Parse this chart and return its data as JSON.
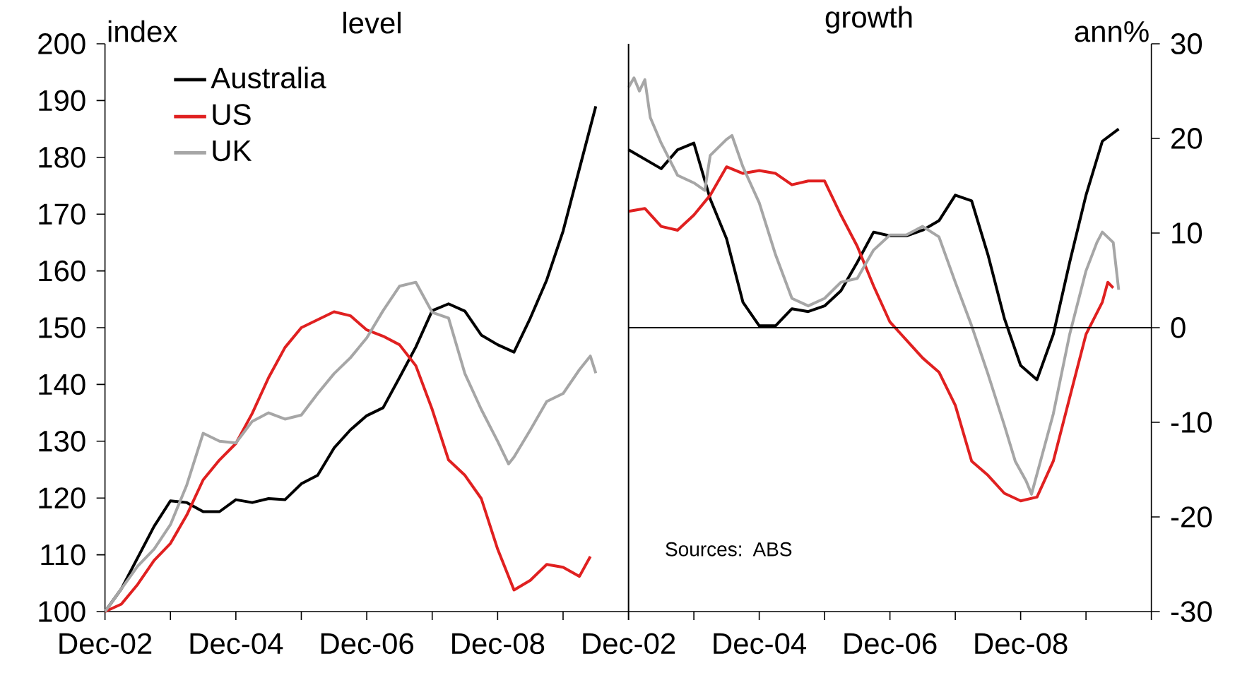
{
  "chart_data": [
    {
      "type": "line",
      "title": "level",
      "ylabel": "index",
      "ylim": [
        100,
        200
      ],
      "yticks": [
        100,
        110,
        120,
        130,
        140,
        150,
        160,
        170,
        180,
        190,
        200
      ],
      "xlim": [
        "2002-12",
        "2010-12"
      ],
      "xticks": [
        {
          "value": "2002-12",
          "label": "Dec-02"
        },
        {
          "value": "2003-12",
          "label": null
        },
        {
          "value": "2004-12",
          "label": "Dec-04"
        },
        {
          "value": "2005-12",
          "label": null
        },
        {
          "value": "2006-12",
          "label": "Dec-06"
        },
        {
          "value": "2007-12",
          "label": null
        },
        {
          "value": "2008-12",
          "label": "Dec-08"
        },
        {
          "value": "2009-12",
          "label": null
        },
        {
          "value": "2010-12",
          "label": null
        }
      ],
      "legend": "top left",
      "grid": false,
      "series": [
        {
          "name": "Australia",
          "color": "#000000",
          "x": [
            "2002-12",
            "2003-03",
            "2003-06",
            "2003-09",
            "2003-12",
            "2004-03",
            "2004-06",
            "2004-09",
            "2004-12",
            "2005-03",
            "2005-06",
            "2005-09",
            "2005-12",
            "2006-03",
            "2006-06",
            "2006-09",
            "2006-12",
            "2007-03",
            "2007-06",
            "2007-09",
            "2007-12",
            "2008-03",
            "2008-06",
            "2008-09",
            "2008-12",
            "2009-03",
            "2009-06",
            "2009-09",
            "2009-12",
            "2010-03",
            "2010-06"
          ],
          "values": [
            100,
            104,
            109.5,
            115,
            119.5,
            119.2,
            117.6,
            117.6,
            119.7,
            119.2,
            119.9,
            119.7,
            122.5,
            124,
            128.8,
            132,
            134.5,
            135.9,
            141.2,
            146.6,
            153,
            154.2,
            152.9,
            148.7,
            147,
            145.7,
            151.7,
            158.4,
            167,
            178,
            189
          ]
        },
        {
          "name": "US",
          "color": "#e02020",
          "x": [
            "2002-12",
            "2003-03",
            "2003-06",
            "2003-09",
            "2003-12",
            "2004-03",
            "2004-06",
            "2004-09",
            "2004-12",
            "2005-03",
            "2005-06",
            "2005-09",
            "2005-12",
            "2006-03",
            "2006-06",
            "2006-09",
            "2006-12",
            "2007-03",
            "2007-06",
            "2007-09",
            "2007-12",
            "2008-03",
            "2008-06",
            "2008-09",
            "2008-12",
            "2009-03",
            "2009-06",
            "2009-09",
            "2009-12",
            "2010-03",
            "2010-05"
          ],
          "values": [
            100,
            101.3,
            104.8,
            109,
            112,
            117,
            123.2,
            126.7,
            129.6,
            134.9,
            141.2,
            146.5,
            150,
            151.4,
            152.8,
            152.1,
            149.6,
            148.5,
            147,
            143.3,
            135.6,
            126.7,
            124,
            119.9,
            111,
            103.8,
            105.5,
            108.3,
            107.8,
            106.2,
            109.7
          ]
        },
        {
          "name": "UK",
          "color": "#a6a6a6",
          "x": [
            "2002-12",
            "2003-03",
            "2003-06",
            "2003-09",
            "2003-12",
            "2004-03",
            "2004-06",
            "2004-09",
            "2004-12",
            "2005-03",
            "2005-06",
            "2005-09",
            "2005-12",
            "2006-03",
            "2006-06",
            "2006-09",
            "2006-12",
            "2007-03",
            "2007-06",
            "2007-09",
            "2007-12",
            "2008-03",
            "2008-06",
            "2008-09",
            "2008-12",
            "2009-02",
            "2009-03",
            "2009-06",
            "2009-09",
            "2009-12",
            "2010-03",
            "2010-05",
            "2010-06"
          ],
          "values": [
            100,
            104,
            108,
            111,
            115.3,
            122.3,
            131.4,
            130,
            129.7,
            133.5,
            135,
            133.9,
            134.6,
            138.4,
            141.9,
            144.7,
            148.2,
            153,
            157.3,
            158,
            152.7,
            151.7,
            141.9,
            135.6,
            130,
            126,
            127.2,
            132,
            137,
            138.4,
            142.6,
            145,
            142
          ]
        }
      ]
    },
    {
      "type": "line",
      "title": "growth",
      "ylabel": "ann%",
      "ylim": [
        -30,
        30
      ],
      "yticks": [
        -30,
        -20,
        -10,
        0,
        10,
        20,
        30
      ],
      "xlim": [
        "2002-12",
        "2010-12"
      ],
      "xticks": [
        {
          "value": "2002-12",
          "label": "Dec-02"
        },
        {
          "value": "2003-12",
          "label": null
        },
        {
          "value": "2004-12",
          "label": "Dec-04"
        },
        {
          "value": "2005-12",
          "label": null
        },
        {
          "value": "2006-12",
          "label": "Dec-06"
        },
        {
          "value": "2007-12",
          "label": null
        },
        {
          "value": "2008-12",
          "label": "Dec-08"
        },
        {
          "value": "2009-12",
          "label": null
        },
        {
          "value": "2010-12",
          "label": null
        }
      ],
      "grid": false,
      "legend": false,
      "ref_lines": [
        {
          "axis": "y",
          "value": 0,
          "color": "#000000"
        }
      ],
      "annotations": [
        "Sources: ABS"
      ],
      "series": [
        {
          "color": "#000000",
          "x": [
            "2002-12",
            "2003-03",
            "2003-06",
            "2003-09",
            "2003-12",
            "2004-03",
            "2004-06",
            "2004-09",
            "2004-12",
            "2005-03",
            "2005-06",
            "2005-09",
            "2005-12",
            "2006-03",
            "2006-06",
            "2006-09",
            "2006-12",
            "2007-03",
            "2007-06",
            "2007-09",
            "2007-12",
            "2008-03",
            "2008-06",
            "2008-09",
            "2008-12",
            "2009-03",
            "2009-06",
            "2009-09",
            "2009-12",
            "2010-03",
            "2010-06"
          ],
          "values": [
            18.8,
            17.8,
            16.8,
            18.8,
            19.5,
            13.6,
            9.4,
            2.7,
            0.2,
            0.2,
            2,
            1.7,
            2.3,
            3.9,
            6.9,
            10.1,
            9.7,
            9.7,
            10.3,
            11.3,
            14,
            13.4,
            7.7,
            1,
            -4,
            -5.5,
            -0.7,
            6.9,
            14,
            19.7,
            21
          ]
        },
        {
          "color": "#e02020",
          "x": [
            "2002-12",
            "2003-03",
            "2003-06",
            "2003-09",
            "2003-12",
            "2004-03",
            "2004-06",
            "2004-09",
            "2004-12",
            "2005-03",
            "2005-06",
            "2005-09",
            "2005-12",
            "2006-03",
            "2006-06",
            "2006-09",
            "2006-12",
            "2007-03",
            "2007-06",
            "2007-09",
            "2007-12",
            "2008-03",
            "2008-06",
            "2008-09",
            "2008-12",
            "2009-03",
            "2009-06",
            "2009-09",
            "2009-12",
            "2010-03",
            "2010-04",
            "2010-05"
          ],
          "values": [
            12.3,
            12.6,
            10.7,
            10.3,
            11.9,
            14,
            17,
            16.3,
            16.6,
            16.3,
            15.1,
            15.5,
            15.5,
            11.9,
            8.6,
            4.4,
            0.6,
            -1.3,
            -3.2,
            -4.7,
            -8.2,
            -14.1,
            -15.6,
            -17.5,
            -18.3,
            -17.9,
            -14.1,
            -7.4,
            -0.7,
            2.7,
            4.8,
            4.2
          ]
        },
        {
          "color": "#a6a6a6",
          "x": [
            "2002-12",
            "2003-01",
            "2003-02",
            "2003-03",
            "2003-04",
            "2003-06",
            "2003-09",
            "2003-12",
            "2004-02",
            "2004-03",
            "2004-06",
            "2004-07",
            "2004-09",
            "2004-12",
            "2005-03",
            "2005-06",
            "2005-09",
            "2005-12",
            "2006-03",
            "2006-06",
            "2006-09",
            "2006-12",
            "2007-03",
            "2007-06",
            "2007-09",
            "2007-12",
            "2008-03",
            "2008-06",
            "2008-09",
            "2008-11",
            "2009-01",
            "2009-02",
            "2009-06",
            "2009-09",
            "2009-12",
            "2010-02",
            "2010-03",
            "2010-05",
            "2010-06"
          ],
          "values": [
            25.4,
            26.4,
            25,
            26.2,
            22.2,
            19.5,
            16.1,
            15.3,
            14.5,
            18.2,
            19.9,
            20.3,
            17,
            13.2,
            7.7,
            3.1,
            2.3,
            3.1,
            4.8,
            5.2,
            8.2,
            9.8,
            9.8,
            10.7,
            9.6,
            4.8,
            0.2,
            -4.9,
            -10.3,
            -14.1,
            -16.2,
            -17.6,
            -9.1,
            -0.7,
            6,
            9,
            10.1,
            9,
            4
          ]
        }
      ]
    }
  ]
}
